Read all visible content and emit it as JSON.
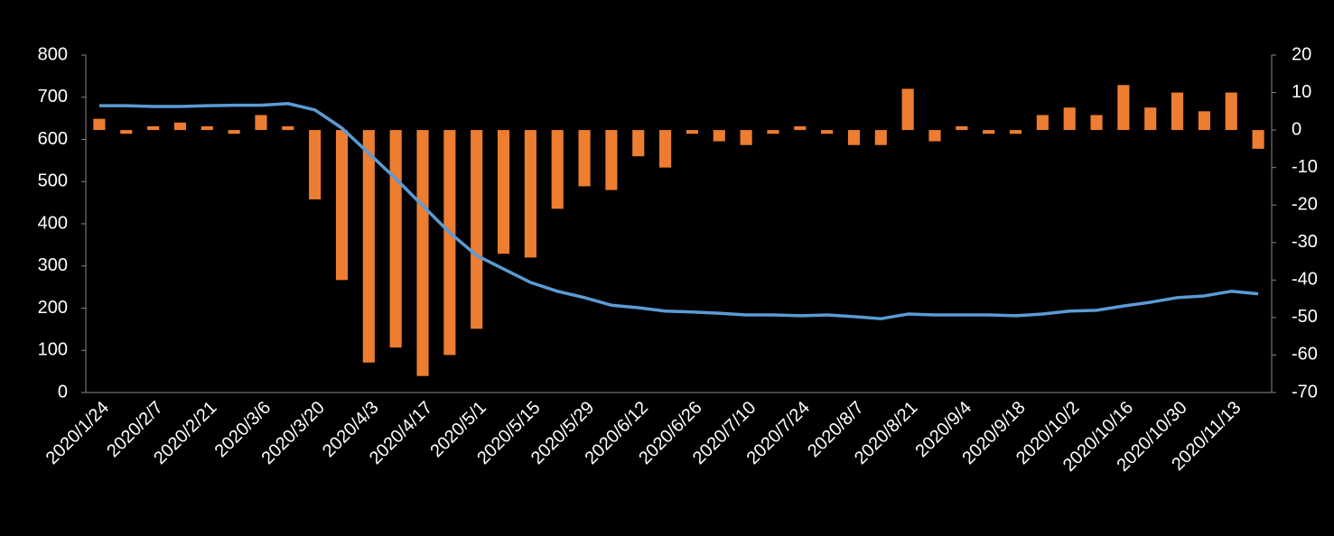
{
  "chart_data": {
    "type": "bar_line",
    "categories": [
      "2020/1/24",
      null,
      "2020/2/7",
      null,
      "2020/2/21",
      null,
      "2020/3/6",
      null,
      "2020/3/20",
      null,
      "2020/4/3",
      null,
      "2020/4/17",
      null,
      "2020/5/1",
      null,
      "2020/5/15",
      null,
      "2020/5/29",
      null,
      "2020/6/12",
      null,
      "2020/6/26",
      null,
      "2020/7/10",
      null,
      "2020/7/24",
      null,
      "2020/8/7",
      null,
      "2020/8/21",
      null,
      "2020/9/4",
      null,
      "2020/9/18",
      null,
      "2020/10/2",
      null,
      "2020/10/16",
      null,
      "2020/10/30",
      null,
      "2020/11/13",
      null
    ],
    "series": [
      {
        "type": "bar",
        "axis": "y2",
        "color": "#ed7d31",
        "values": [
          3,
          -1,
          1,
          2,
          1,
          -1,
          4,
          1,
          -18.5,
          -40,
          -62,
          -58,
          -65.6,
          -60,
          -53,
          -33,
          -34,
          -21,
          -15,
          -16,
          -7,
          -10,
          -1,
          -3,
          -4,
          -1,
          1,
          -1,
          -4,
          -4,
          11,
          -3,
          1,
          -1,
          -1,
          4,
          6,
          4,
          12,
          6,
          10,
          5,
          10,
          -5
        ]
      },
      {
        "type": "line",
        "axis": "y",
        "color": "#5b9bd5",
        "values": [
          680,
          680,
          678,
          678,
          680,
          681,
          681,
          685,
          670,
          627,
          567,
          507,
          443,
          379,
          325,
          293,
          261,
          240,
          225,
          207,
          201,
          193,
          191,
          188,
          184,
          184,
          182,
          184,
          180,
          175,
          186,
          184,
          184,
          184,
          182,
          186,
          193,
          195,
          205,
          214,
          225,
          229,
          240,
          234
        ]
      }
    ],
    "ylim": [
      0,
      800
    ],
    "yticks": [
      0,
      100,
      200,
      300,
      400,
      500,
      600,
      700,
      800
    ],
    "y2lim": [
      -70,
      20
    ],
    "y2ticks": [
      -70,
      -60,
      -50,
      -40,
      -30,
      -20,
      -10,
      0,
      10,
      20
    ]
  }
}
